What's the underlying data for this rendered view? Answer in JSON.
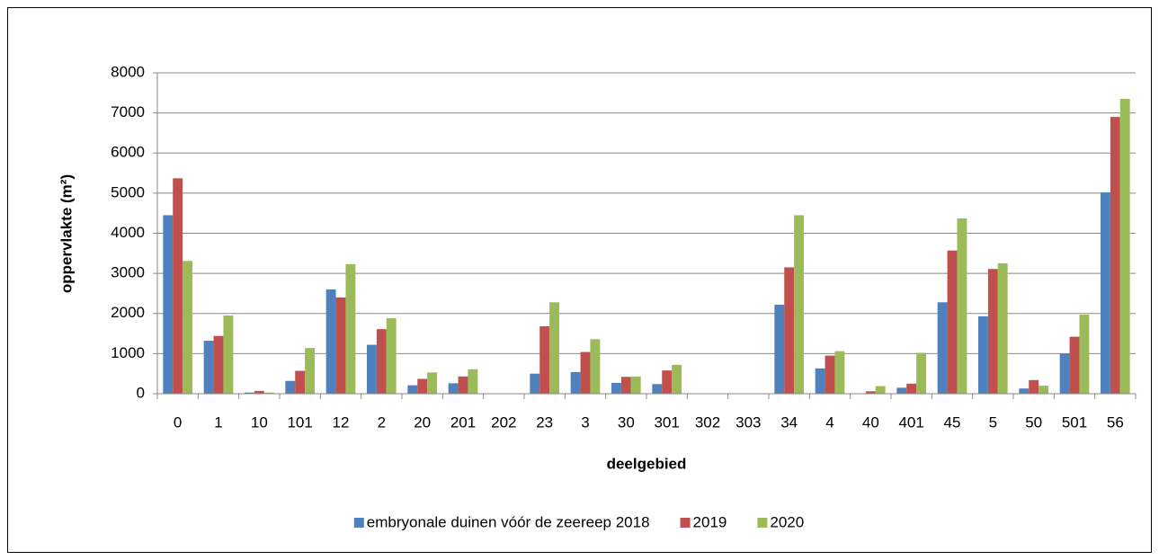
{
  "chart_data": {
    "type": "bar",
    "x_label": "deelgebied",
    "y_label": "oppervlakte (m²)",
    "categories": [
      "0",
      "1",
      "10",
      "101",
      "12",
      "2",
      "20",
      "201",
      "202",
      "23",
      "3",
      "30",
      "301",
      "302",
      "303",
      "34",
      "4",
      "40",
      "401",
      "45",
      "5",
      "50",
      "501",
      "56"
    ],
    "series": [
      {
        "name": "embryonale duinen vóór de zeereep 2018",
        "color": "#4f81bd",
        "values": [
          4450,
          1320,
          30,
          320,
          2600,
          1220,
          210,
          260,
          0,
          500,
          540,
          270,
          240,
          0,
          0,
          2220,
          630,
          10,
          150,
          2280,
          1930,
          130,
          1000,
          5020
        ]
      },
      {
        "name": "2019",
        "color": "#c0504d",
        "values": [
          5370,
          1440,
          70,
          570,
          2400,
          1610,
          370,
          430,
          0,
          1680,
          1040,
          420,
          580,
          0,
          0,
          3150,
          950,
          60,
          250,
          3570,
          3110,
          340,
          1420,
          6900
        ]
      },
      {
        "name": "2020",
        "color": "#9bbb59",
        "values": [
          3310,
          1950,
          30,
          1140,
          3230,
          1880,
          530,
          610,
          0,
          2280,
          1360,
          430,
          720,
          0,
          0,
          4450,
          1060,
          190,
          1020,
          4370,
          3250,
          200,
          1970,
          7350
        ]
      }
    ],
    "ylim": [
      0,
      8000
    ],
    "yticks": [
      0,
      1000,
      2000,
      3000,
      4000,
      5000,
      6000,
      7000,
      8000
    ],
    "grid": true,
    "legend": "bottom"
  }
}
